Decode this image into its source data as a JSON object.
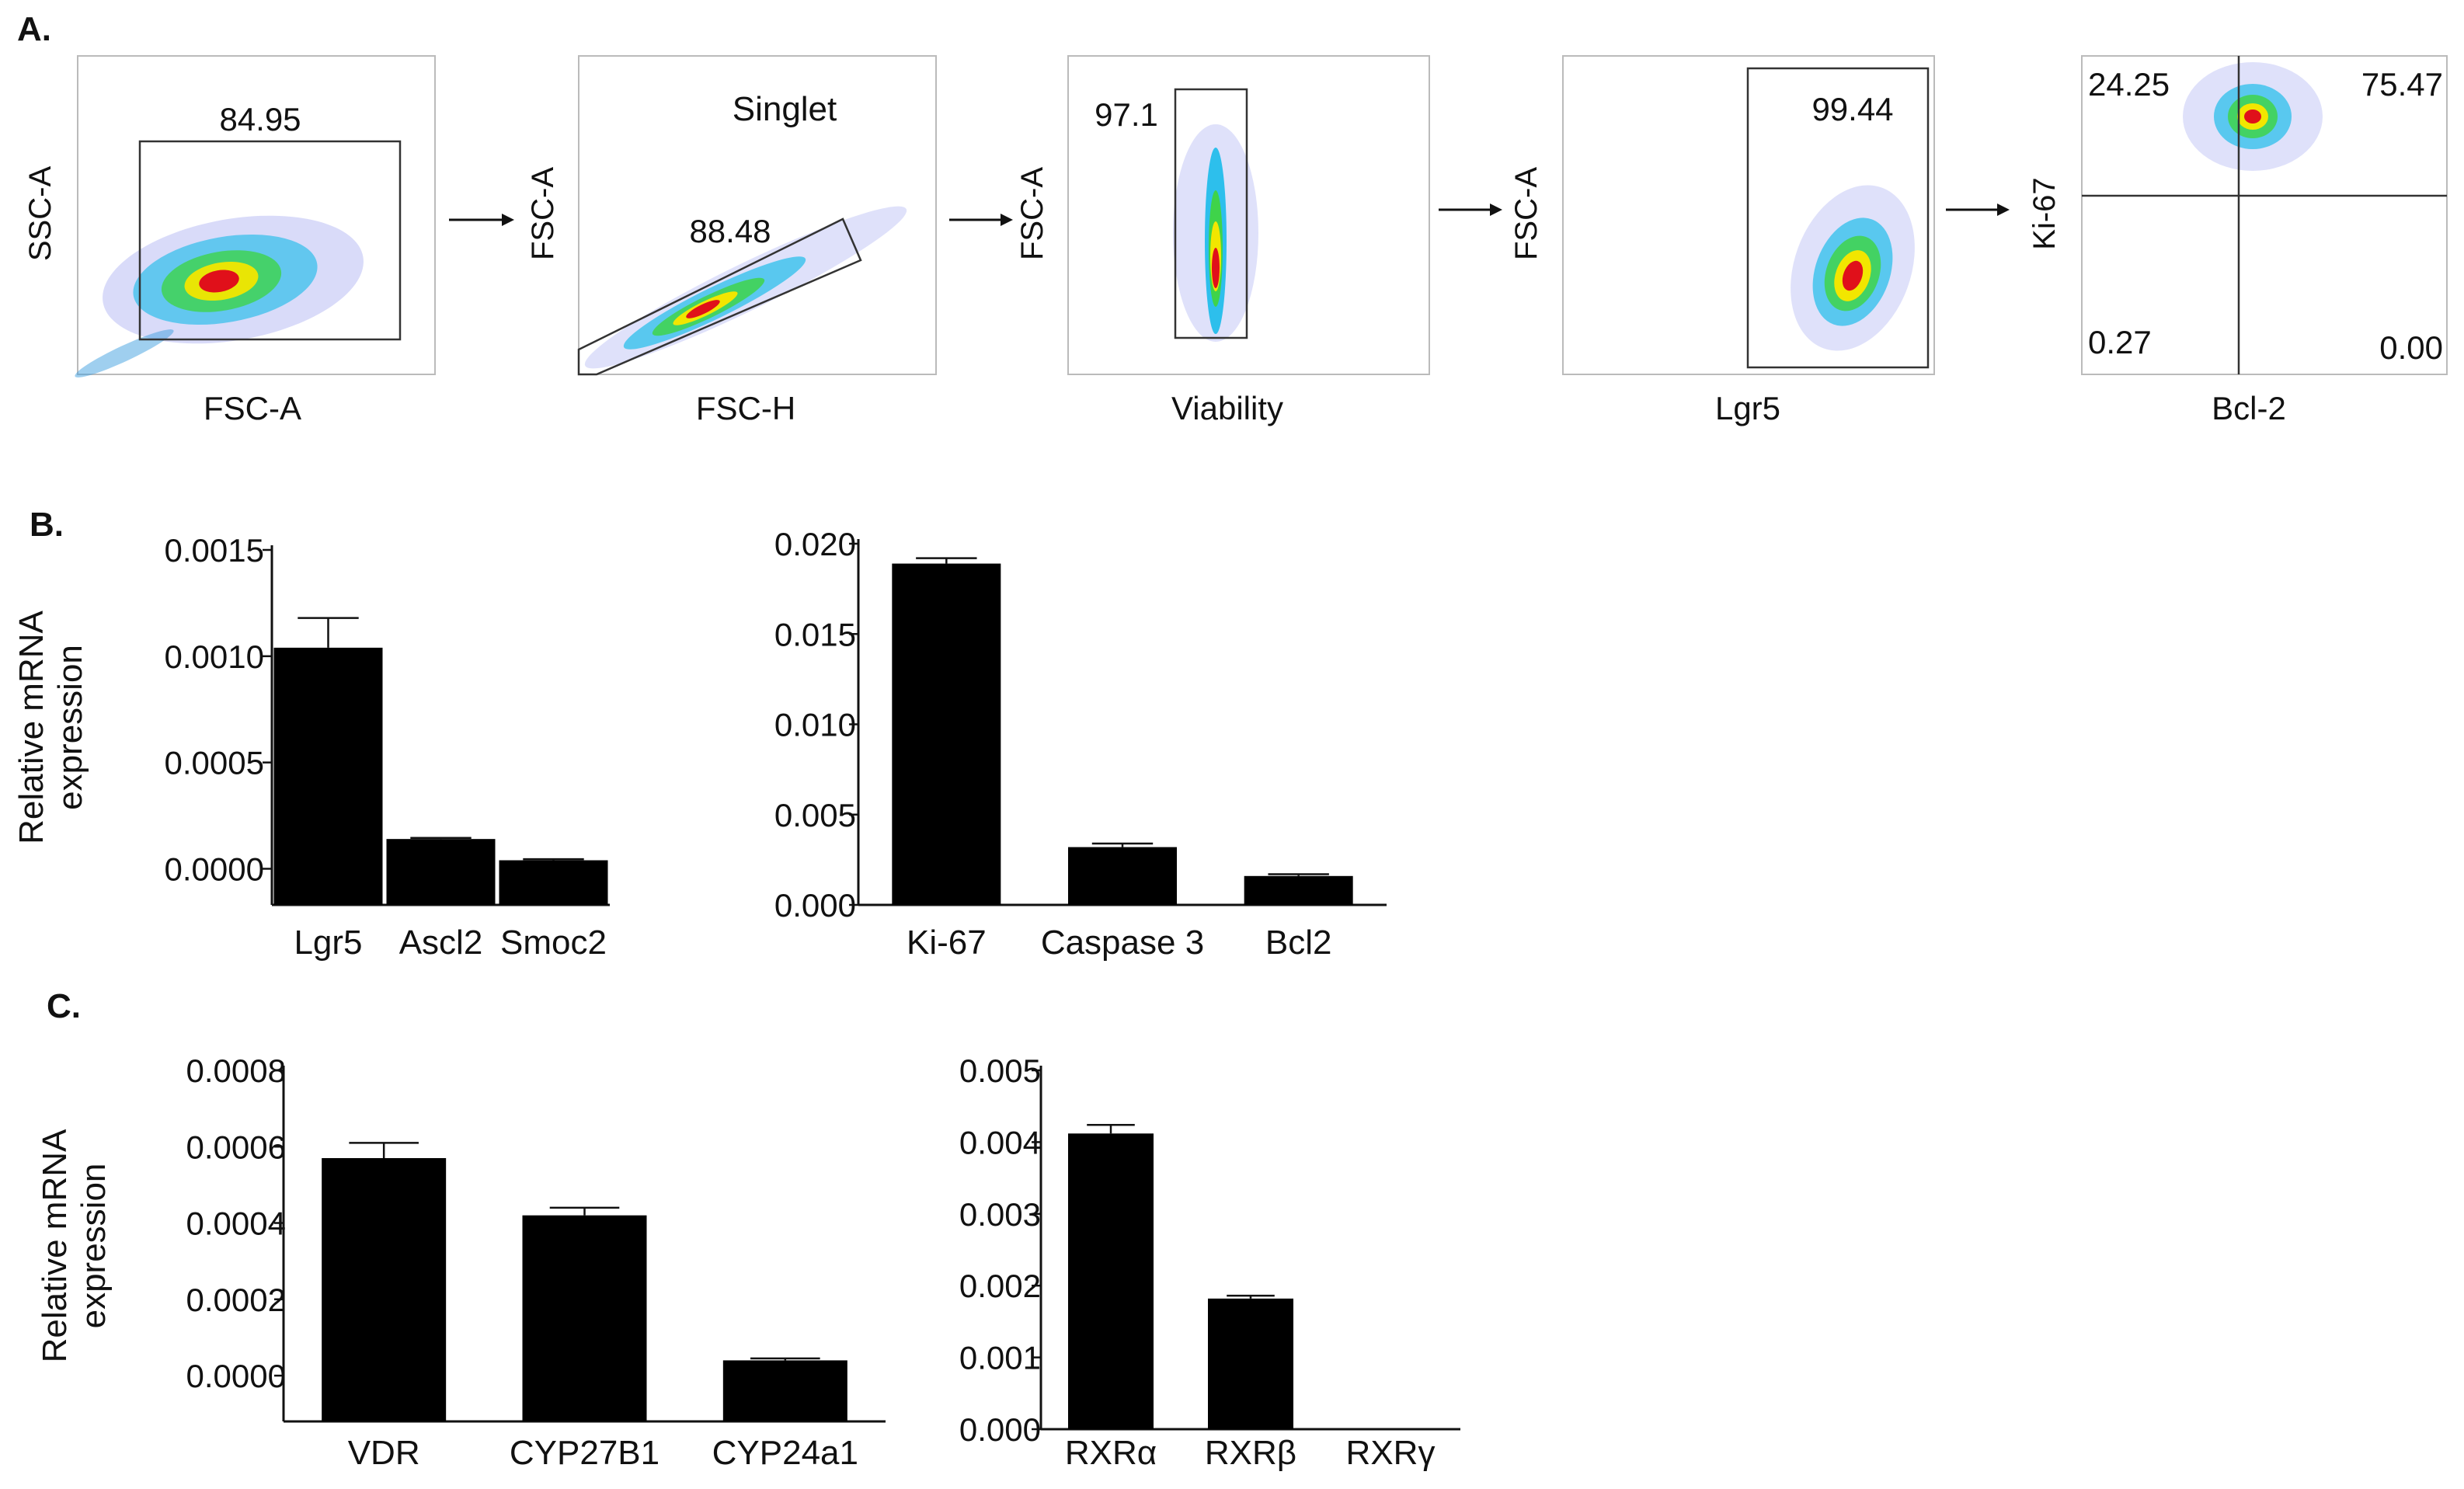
{
  "panel_labels": [
    "A.",
    "B.",
    "C."
  ],
  "flow": {
    "plots": [
      {
        "xlabel": "FSC-A",
        "ylabel": "SSC-A",
        "title": "",
        "gate_label": "84.95"
      },
      {
        "xlabel": "FSC-H",
        "ylabel": "FSC-A",
        "title": "Singlet",
        "gate_label": "88.48"
      },
      {
        "xlabel": "Viability",
        "ylabel": "FSC-A",
        "title": "",
        "gate_label": "97.1"
      },
      {
        "xlabel": "Lgr5",
        "ylabel": "FSC-A",
        "title": "",
        "gate_label": "99.44"
      },
      {
        "xlabel": "Bcl-2",
        "ylabel": "Ki-67",
        "title": "",
        "quadrants": [
          "24.25",
          "75.47",
          "0.27",
          "0.00"
        ]
      }
    ],
    "arrow_icon": "right-arrow-icon",
    "density_colors": [
      "#1a1fd6",
      "#00b7e8",
      "#3fd34a",
      "#f2e600",
      "#ff7a00",
      "#e0101a"
    ]
  },
  "bar_color": "#000000",
  "chart_data": [
    {
      "type": "bar",
      "panel": "B",
      "categories": [
        "Lgr5",
        "Ascl2",
        "Smoc2"
      ],
      "values": [
        0.00104,
        0.00014,
        4e-05
      ],
      "errors": [
        0.00014,
        5e-06,
        5e-06
      ],
      "ylabel": "Relative mRNA expression",
      "ylabel_lines": [
        "Relative mRNA",
        "expression"
      ],
      "ylim": [
        -0.00017,
        0.0015
      ],
      "yticks": [
        0.0,
        0.0005,
        0.001,
        0.0015
      ],
      "ytick_labels": [
        "0.0000",
        "0.0005",
        "0.0010",
        "0.0015"
      ]
    },
    {
      "type": "bar",
      "panel": "B",
      "categories": [
        "Ki-67",
        "Caspase 3",
        "Bcl2"
      ],
      "values": [
        0.0189,
        0.0032,
        0.0016
      ],
      "errors": [
        0.0003,
        0.0002,
        0.0001
      ],
      "ylabel": "",
      "ylim": [
        0,
        0.02
      ],
      "yticks": [
        0.0,
        0.005,
        0.01,
        0.015,
        0.02
      ],
      "ytick_labels": [
        "0.000",
        "0.005",
        "0.010",
        "0.015",
        "0.020"
      ]
    },
    {
      "type": "bar",
      "panel": "C",
      "categories": [
        "VDR",
        "CYP27B1",
        "CYP24a1"
      ],
      "values": [
        0.00057,
        0.00042,
        4e-05
      ],
      "errors": [
        4e-05,
        2e-05,
        5e-06
      ],
      "ylabel": "Relative mRNA expression",
      "ylabel_lines": [
        "Relative mRNA",
        "expression"
      ],
      "ylim": [
        -0.00012,
        0.0008
      ],
      "yticks": [
        0.0,
        0.0002,
        0.0004,
        0.0006,
        0.0008
      ],
      "ytick_labels": [
        "0.0000",
        "0.0002",
        "0.0004",
        "0.0006",
        "0.0008"
      ]
    },
    {
      "type": "bar",
      "panel": "C",
      "categories": [
        "RXRα",
        "RXRβ",
        "RXRγ"
      ],
      "values": [
        0.00412,
        0.00182,
        0.0
      ],
      "errors": [
        0.00012,
        4e-05,
        0.0
      ],
      "ylabel": "",
      "ylim": [
        0,
        0.005
      ],
      "yticks": [
        0.0,
        0.001,
        0.002,
        0.003,
        0.004,
        0.005
      ],
      "ytick_labels": [
        "0.000",
        "0.001",
        "0.002",
        "0.003",
        "0.004",
        "0.005"
      ]
    }
  ]
}
